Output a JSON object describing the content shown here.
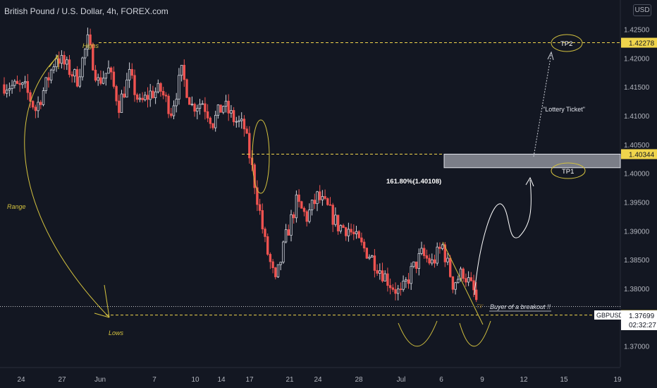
{
  "header": {
    "title": "British Pound / U.S. Dollar, 4h, FOREX.com",
    "currency_button": "USD"
  },
  "colors": {
    "background": "#131722",
    "up": "#d1d4dc",
    "down": "#ef5350",
    "annotation": "#f0d54c",
    "grid": "#1e222d"
  },
  "chart_data": {
    "type": "candlestick",
    "title": "British Pound / U.S. Dollar, 4h, FOREX.com",
    "symbol": "GBPUSD",
    "ylim": [
      1.3675,
      1.4275
    ],
    "y_ticks": [
      "1.37000",
      "1.37500",
      "1.38000",
      "1.38500",
      "1.39000",
      "1.39500",
      "1.40000",
      "1.40500",
      "1.41000",
      "1.41500",
      "1.42000",
      "1.42500"
    ],
    "x_ticks": [
      "24",
      "27",
      "Jun",
      "7",
      "10",
      "14",
      "17",
      "21",
      "24",
      "28",
      "Jul",
      "6",
      "9",
      "12",
      "15",
      "19"
    ],
    "grid": false,
    "price_path": [
      {
        "d": 0,
        "p": 1.4155
      },
      {
        "d": 2,
        "p": 1.4148
      },
      {
        "d": 3,
        "p": 1.4112
      },
      {
        "d": 4,
        "p": 1.4155
      },
      {
        "d": 5,
        "p": 1.4205
      },
      {
        "d": 7,
        "p": 1.4165
      },
      {
        "d": 8,
        "p": 1.423
      },
      {
        "d": 9,
        "p": 1.416
      },
      {
        "d": 10,
        "p": 1.418
      },
      {
        "d": 11,
        "p": 1.412
      },
      {
        "d": 12,
        "p": 1.417
      },
      {
        "d": 13,
        "p": 1.412
      },
      {
        "d": 14,
        "p": 1.414
      },
      {
        "d": 15,
        "p": 1.4145
      },
      {
        "d": 16,
        "p": 1.411
      },
      {
        "d": 17,
        "p": 1.4175
      },
      {
        "d": 18,
        "p": 1.4118
      },
      {
        "d": 19,
        "p": 1.4125
      },
      {
        "d": 20,
        "p": 1.409
      },
      {
        "d": 21,
        "p": 1.412
      },
      {
        "d": 22,
        "p": 1.4095
      },
      {
        "d": 23,
        "p": 1.408
      },
      {
        "d": 24,
        "p": 1.3985
      },
      {
        "d": 25,
        "p": 1.388
      },
      {
        "d": 26,
        "p": 1.381
      },
      {
        "d": 27,
        "p": 1.389
      },
      {
        "d": 28,
        "p": 1.395
      },
      {
        "d": 29,
        "p": 1.3925
      },
      {
        "d": 30,
        "p": 1.396
      },
      {
        "d": 31,
        "p": 1.394
      },
      {
        "d": 32,
        "p": 1.391
      },
      {
        "d": 33,
        "p": 1.3905
      },
      {
        "d": 34,
        "p": 1.388
      },
      {
        "d": 35,
        "p": 1.386
      },
      {
        "d": 36,
        "p": 1.3835
      },
      {
        "d": 37,
        "p": 1.381
      },
      {
        "d": 38,
        "p": 1.379
      },
      {
        "d": 39,
        "p": 1.383
      },
      {
        "d": 40,
        "p": 1.386
      },
      {
        "d": 41,
        "p": 1.3845
      },
      {
        "d": 42,
        "p": 1.3875
      },
      {
        "d": 43,
        "p": 1.381
      },
      {
        "d": 44,
        "p": 1.383
      },
      {
        "d": 45,
        "p": 1.3795
      },
      {
        "d": 45.4,
        "p": 1.377
      }
    ],
    "horizontal_levels": [
      {
        "label": "1.42278",
        "value": 1.42278
      },
      {
        "label": "1.40344",
        "value": 1.40344
      },
      {
        "label": "1.37551",
        "value": 1.37551
      }
    ],
    "current_price": {
      "symbol": "GBPUSD",
      "value": "1.37699",
      "countdown": "02:32:27",
      "price": 1.37699
    },
    "fib_label": "161.80%(1.40108)",
    "target_zone": [
      1.40108,
      1.40344
    ],
    "annotations": {
      "highs": "Highs",
      "lows": "Lows",
      "range": "Range",
      "tp1": "TP1",
      "tp2": "TP2",
      "lottery": "\"Lottery Ticket\"",
      "breakout": "Buyer of a breakout !!"
    }
  }
}
